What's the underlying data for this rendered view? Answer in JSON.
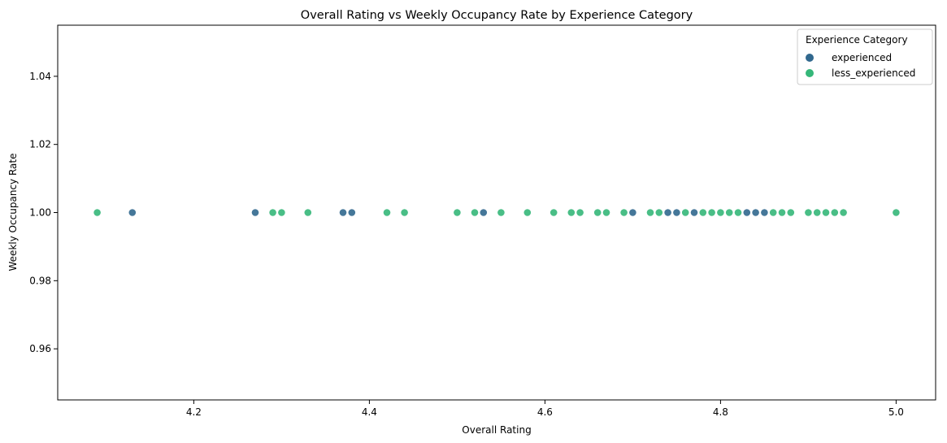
{
  "chart_data": {
    "type": "scatter",
    "title": "Overall Rating vs Weekly Occupancy Rate by Experience Category",
    "xlabel": "Overall Rating",
    "ylabel": "Weekly Occupancy Rate",
    "xlim": [
      4.045,
      5.045
    ],
    "ylim": [
      0.945,
      1.055
    ],
    "xticks": [
      4.2,
      4.4,
      4.6,
      4.8,
      5.0
    ],
    "xtick_labels": [
      "4.2",
      "4.4",
      "4.6",
      "4.8",
      "5.0"
    ],
    "yticks": [
      0.96,
      0.98,
      1.0,
      1.02,
      1.04
    ],
    "ytick_labels": [
      "0.96",
      "0.98",
      "1.00",
      "1.02",
      "1.04"
    ],
    "grid": false,
    "legend": {
      "title": "Experience Category",
      "placement": "top-right",
      "entries": [
        {
          "label": "experienced",
          "color": "#31688e"
        },
        {
          "label": "less_experienced",
          "color": "#35b779"
        }
      ]
    },
    "series": [
      {
        "name": "experienced",
        "color": "#31688e",
        "x": [
          4.13,
          4.27,
          4.37,
          4.38,
          4.53,
          4.7,
          4.74,
          4.75,
          4.77,
          4.83,
          4.84,
          4.85
        ],
        "y": [
          1.0,
          1.0,
          1.0,
          1.0,
          1.0,
          1.0,
          1.0,
          1.0,
          1.0,
          1.0,
          1.0,
          1.0
        ]
      },
      {
        "name": "less_experienced",
        "color": "#35b779",
        "x": [
          4.09,
          4.29,
          4.3,
          4.33,
          4.42,
          4.44,
          4.5,
          4.52,
          4.55,
          4.58,
          4.61,
          4.63,
          4.64,
          4.66,
          4.67,
          4.69,
          4.72,
          4.73,
          4.76,
          4.78,
          4.79,
          4.8,
          4.81,
          4.82,
          4.86,
          4.87,
          4.88,
          4.9,
          4.91,
          4.92,
          4.93,
          4.94,
          5.0
        ],
        "y": [
          1.0,
          1.0,
          1.0,
          1.0,
          1.0,
          1.0,
          1.0,
          1.0,
          1.0,
          1.0,
          1.0,
          1.0,
          1.0,
          1.0,
          1.0,
          1.0,
          1.0,
          1.0,
          1.0,
          1.0,
          1.0,
          1.0,
          1.0,
          1.0,
          1.0,
          1.0,
          1.0,
          1.0,
          1.0,
          1.0,
          1.0,
          1.0,
          1.0
        ]
      }
    ]
  }
}
